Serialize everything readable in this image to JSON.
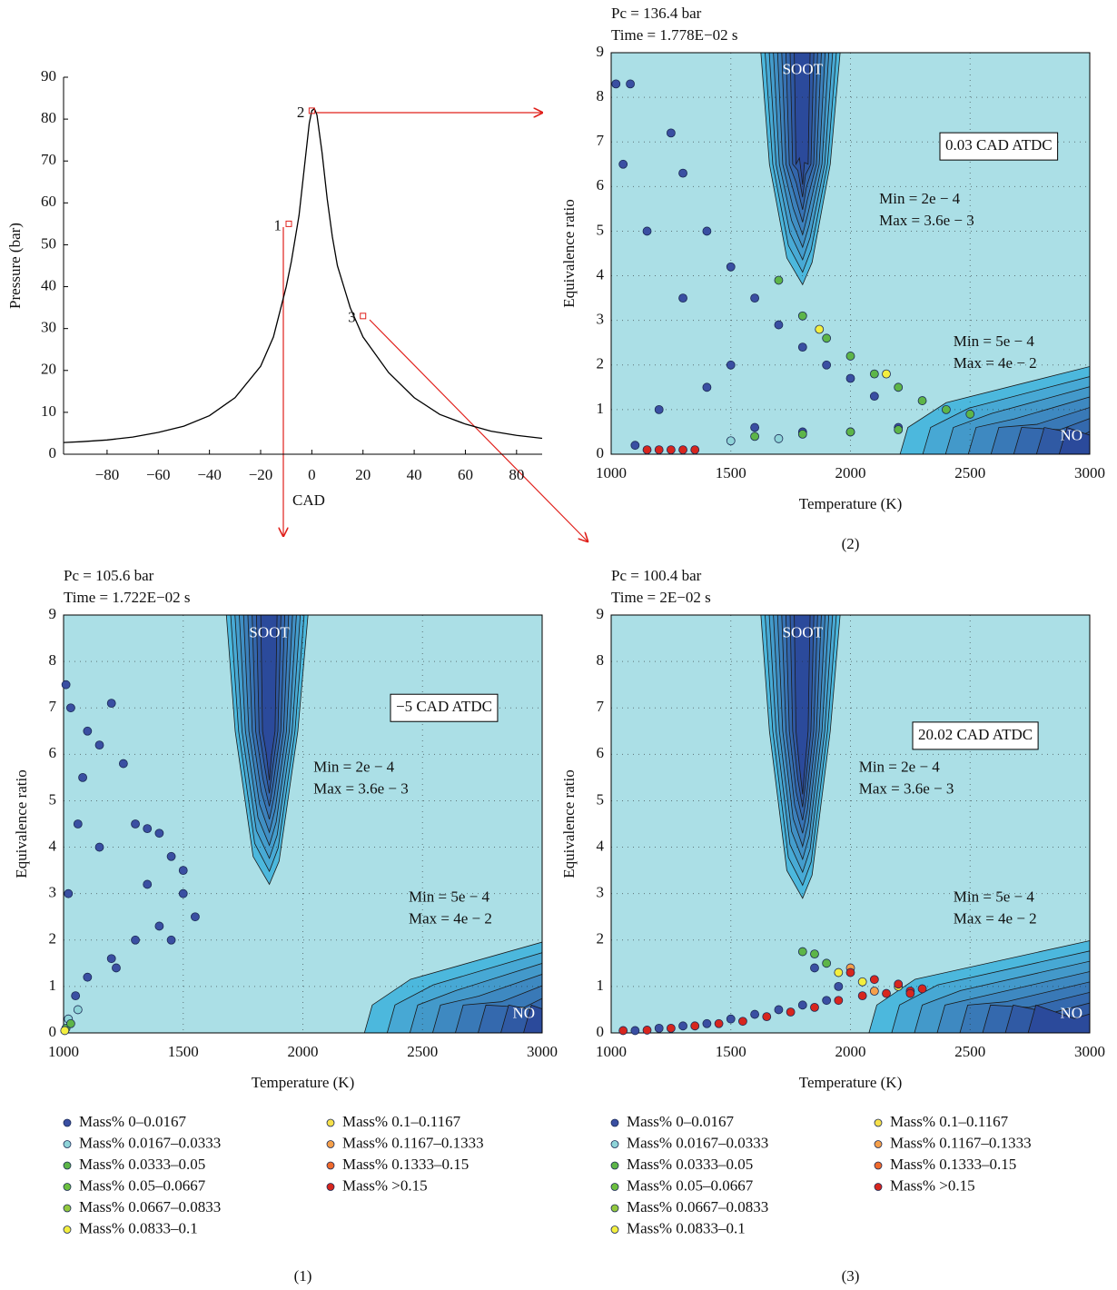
{
  "chart_data": [
    {
      "type": "line",
      "ylabel": "Pressure (bar)",
      "xlabel": "CAD",
      "xlim": [
        -97,
        90
      ],
      "ylim": [
        0,
        90
      ],
      "xticks": [
        {
          "value": -80,
          "label": "−80"
        },
        {
          "value": -60,
          "label": "−60"
        },
        {
          "value": -40,
          "label": "−40"
        },
        {
          "value": -20,
          "label": "−20"
        },
        0,
        20,
        40,
        60,
        80
      ],
      "yticks": [
        0,
        10,
        20,
        30,
        40,
        50,
        60,
        70,
        80,
        90
      ],
      "x": [
        -97,
        -90,
        -80,
        -70,
        -60,
        -50,
        -40,
        -30,
        -20,
        -15,
        -10,
        -8,
        -5,
        -3,
        -1,
        0,
        1,
        2,
        4,
        6,
        8,
        10,
        15,
        20,
        30,
        40,
        50,
        60,
        70,
        80,
        90
      ],
      "series": [
        {
          "color": "#000000",
          "values": [
            2.8,
            3.0,
            3.4,
            4.1,
            5.2,
            6.7,
            9.2,
            13.5,
            21,
            28,
            40,
            46,
            57,
            68,
            79,
            82,
            82.5,
            81,
            72,
            61,
            52,
            45,
            35,
            28,
            19.5,
            13.5,
            9.5,
            7.2,
            5.5,
            4.5,
            3.8
          ]
        }
      ],
      "markers": [
        {
          "label": "1",
          "x": -9,
          "y": 55
        },
        {
          "label": "2",
          "x": 0,
          "y": 82
        },
        {
          "label": "3",
          "x": 20,
          "y": 33
        }
      ]
    },
    {
      "type": "scatter",
      "pressure_note": "Pc = 136.4 bar",
      "time_note": "Time = 1.778E−02 s",
      "xlabel": "Temperature (K)",
      "ylabel": "Equivalence ratio",
      "caption": "(2)",
      "crank_angle": "0.03 CAD ATDC",
      "soot_label": "SOOT",
      "no_label": "NO",
      "soot_range": [
        "Min = 2e − 4",
        "Max = 3.6e − 3"
      ],
      "no_range": [
        "Min = 5e − 4",
        "Max = 4e − 2"
      ],
      "xlim": [
        1000,
        3000
      ],
      "ylim": [
        0,
        9
      ],
      "xticks": [
        1000,
        1500,
        2000,
        2500,
        3000
      ],
      "yticks": [
        0,
        1,
        2,
        3,
        4,
        5,
        6,
        7,
        8,
        9
      ],
      "grid": true,
      "legend": false,
      "series": [
        {
          "color": "#3a4fa2",
          "x": [
            1020,
            1050,
            1080,
            1150,
            1250,
            1300,
            1400,
            1500,
            1600,
            1700,
            1800,
            1900,
            2000,
            2100,
            1200,
            1400,
            1600,
            1800,
            2000,
            2200,
            1100,
            1300,
            1500
          ],
          "y": [
            8.3,
            6.5,
            8.3,
            5.0,
            7.2,
            6.3,
            5.0,
            4.2,
            3.5,
            2.9,
            2.4,
            2.0,
            1.7,
            1.3,
            1.0,
            1.5,
            0.6,
            0.5,
            0.5,
            0.6,
            0.2,
            3.5,
            2.0
          ]
        },
        {
          "color": "#8fd4d8",
          "x": [
            1500,
            1700
          ],
          "y": [
            0.3,
            0.35
          ]
        },
        {
          "color": "#5db548",
          "x": [
            1700,
            1800,
            1900,
            2000,
            2100,
            2200,
            2300,
            2400,
            2500,
            1600,
            1800,
            2000,
            2200
          ],
          "y": [
            3.9,
            3.1,
            2.6,
            2.2,
            1.8,
            1.5,
            1.2,
            1.0,
            0.9,
            0.4,
            0.45,
            0.5,
            0.55
          ]
        },
        {
          "color": "#f3ee3f",
          "x": [
            1870,
            2150
          ],
          "y": [
            2.8,
            1.8
          ]
        },
        {
          "color": "#d7261e",
          "x": [
            1150,
            1200,
            1250,
            1300,
            1350
          ],
          "y": [
            0.1,
            0.1,
            0.1,
            0.1,
            0.1
          ]
        }
      ]
    },
    {
      "type": "scatter",
      "pressure_note": "Pc = 105.6 bar",
      "time_note": "Time = 1.722E−02 s",
      "xlabel": "Temperature (K)",
      "ylabel": "Equivalence ratio",
      "caption": "(1)",
      "crank_angle": "−5 CAD ATDC",
      "soot_label": "SOOT",
      "no_label": "NO",
      "soot_range": [
        "Min = 2e − 4",
        "Max = 3.6e − 3"
      ],
      "no_range": [
        "Min = 5e − 4",
        "Max = 4e − 2"
      ],
      "xlim": [
        1000,
        3000
      ],
      "ylim": [
        0,
        9
      ],
      "xticks": [
        1000,
        1500,
        2000,
        2500,
        3000
      ],
      "yticks": [
        0,
        1,
        2,
        3,
        4,
        5,
        6,
        7,
        8,
        9
      ],
      "grid": true,
      "legend": true,
      "series": [
        {
          "name": "Mass% 0–0.0167",
          "color": "#3a4fa2",
          "x": [
            1010,
            1030,
            1100,
            1150,
            1200,
            1080,
            1300,
            1350,
            1400,
            1450,
            1500,
            1550,
            1400,
            1300,
            1200,
            1100,
            1050,
            1250,
            1350,
            1450,
            1500,
            1020,
            1060,
            1150,
            1220
          ],
          "y": [
            7.5,
            7.0,
            6.5,
            6.2,
            7.1,
            5.5,
            4.5,
            4.4,
            4.3,
            3.8,
            3.0,
            2.5,
            2.3,
            2.0,
            1.6,
            1.2,
            0.8,
            5.8,
            3.2,
            2.0,
            3.5,
            3.0,
            4.5,
            4.0,
            1.4
          ]
        },
        {
          "name": "Mass% 0.0167–0.0333",
          "color": "#8fd4d8",
          "x": [
            1020,
            1060
          ],
          "y": [
            0.3,
            0.5
          ]
        },
        {
          "name": "Mass% 0.0333–0.05",
          "color": "#5db548",
          "x": [
            1010,
            1030
          ],
          "y": [
            0.1,
            0.2
          ]
        },
        {
          "name": "Mass% 0.05–0.0667",
          "color": "#6cbf3f",
          "x": [],
          "y": []
        },
        {
          "name": "Mass% 0.0667–0.0833",
          "color": "#93c83e",
          "x": [],
          "y": []
        },
        {
          "name": "Mass% 0.0833–0.1",
          "color": "#f3ee3f",
          "x": [
            1005
          ],
          "y": [
            0.05
          ]
        },
        {
          "name": "Mass% 0.1–0.1167",
          "color": "#f6e04a",
          "x": [],
          "y": []
        },
        {
          "name": "Mass% 0.1167–0.1333",
          "color": "#f5a04a",
          "x": [],
          "y": []
        },
        {
          "name": "Mass% 0.1333–0.15",
          "color": "#ef6a2c",
          "x": [],
          "y": []
        },
        {
          "name": "Mass% >0.15",
          "color": "#d7261e",
          "x": [],
          "y": []
        }
      ]
    },
    {
      "type": "scatter",
      "pressure_note": "Pc = 100.4 bar",
      "time_note": "Time = 2E−02 s",
      "xlabel": "Temperature (K)",
      "ylabel": "Equivalence ratio",
      "caption": "(3)",
      "crank_angle": "20.02 CAD ATDC",
      "soot_label": "SOOT",
      "no_label": "NO",
      "soot_range": [
        "Min = 2e − 4",
        "Max = 3.6e − 3"
      ],
      "no_range": [
        "Min = 5e − 4",
        "Max = 4e − 2"
      ],
      "xlim": [
        1000,
        3000
      ],
      "ylim": [
        0,
        9
      ],
      "xticks": [
        1000,
        1500,
        2000,
        2500,
        3000
      ],
      "yticks": [
        0,
        1,
        2,
        3,
        4,
        5,
        6,
        7,
        8,
        9
      ],
      "grid": true,
      "legend": true,
      "series": [
        {
          "name": "Mass% 0–0.0167",
          "color": "#3a4fa2",
          "x": [
            1100,
            1200,
            1300,
            1400,
            1500,
            1600,
            1700,
            1800,
            1900,
            1850,
            1950
          ],
          "y": [
            0.05,
            0.1,
            0.15,
            0.2,
            0.3,
            0.4,
            0.5,
            0.6,
            0.7,
            1.4,
            1.0
          ]
        },
        {
          "name": "Mass% 0.0167–0.0333",
          "color": "#8fd4d8",
          "x": [],
          "y": []
        },
        {
          "name": "Mass% 0.0333–0.05",
          "color": "#5db548",
          "x": [
            1800,
            1850,
            1900
          ],
          "y": [
            1.75,
            1.7,
            1.5
          ]
        },
        {
          "name": "Mass% 0.05–0.0667",
          "color": "#6cbf3f",
          "x": [],
          "y": []
        },
        {
          "name": "Mass% 0.0667–0.0833",
          "color": "#93c83e",
          "x": [],
          "y": []
        },
        {
          "name": "Mass% 0.0833–0.1",
          "color": "#f3ee3f",
          "x": [
            1950,
            2050,
            2200
          ],
          "y": [
            1.3,
            1.1,
            1.0
          ]
        },
        {
          "name": "Mass% 0.1–0.1167",
          "color": "#f6e04a",
          "x": [],
          "y": []
        },
        {
          "name": "Mass% 0.1167–0.1333",
          "color": "#f5a04a",
          "x": [
            2000,
            2100
          ],
          "y": [
            1.4,
            0.9
          ]
        },
        {
          "name": "Mass% 0.1333–0.15",
          "color": "#ef6a2c",
          "x": [],
          "y": []
        },
        {
          "name": "Mass% >0.15",
          "color": "#d7261e",
          "x": [
            1050,
            1150,
            1250,
            1350,
            1450,
            1550,
            1650,
            1750,
            1850,
            1950,
            2050,
            2150,
            2250,
            2300,
            2000,
            2100,
            2200,
            2250
          ],
          "y": [
            0.05,
            0.06,
            0.1,
            0.15,
            0.2,
            0.25,
            0.35,
            0.45,
            0.55,
            0.7,
            0.8,
            0.85,
            0.9,
            0.95,
            1.3,
            1.15,
            1.05,
            0.85
          ]
        }
      ]
    }
  ]
}
